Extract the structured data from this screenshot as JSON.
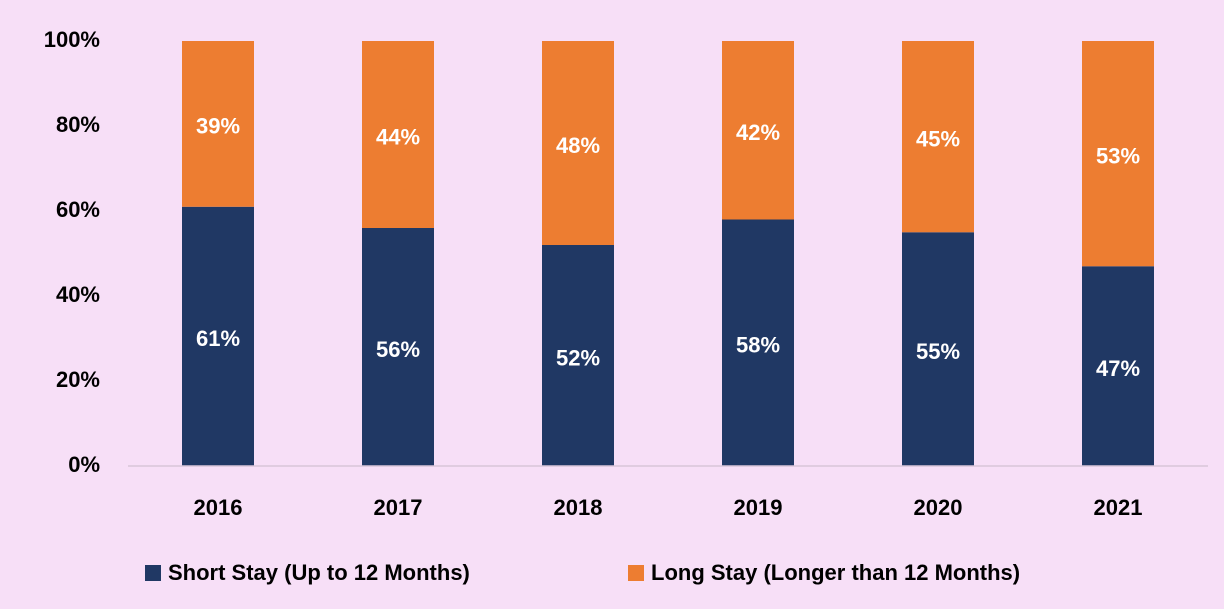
{
  "chart_data": {
    "type": "stacked_bar",
    "categories": [
      "2016",
      "2017",
      "2018",
      "2019",
      "2020",
      "2021"
    ],
    "series": [
      {
        "name": "Short Stay (Up to 12 Months)",
        "color": "#203864",
        "values": [
          61,
          56,
          52,
          58,
          55,
          47
        ],
        "value_labels": [
          "61%",
          "56%",
          "52%",
          "58%",
          "55%",
          "47%"
        ]
      },
      {
        "name": "Long Stay (Longer than 12 Months)",
        "color": "#ed7d31",
        "values": [
          39,
          44,
          48,
          42,
          45,
          53
        ],
        "value_labels": [
          "39%",
          "44%",
          "48%",
          "42%",
          "45%",
          "53%"
        ]
      }
    ],
    "ylim": [
      0,
      100
    ],
    "yticks": [
      {
        "value": 0,
        "label": "0%"
      },
      {
        "value": 20,
        "label": "20%"
      },
      {
        "value": 40,
        "label": "40%"
      },
      {
        "value": 60,
        "label": "60%"
      },
      {
        "value": 80,
        "label": "80%"
      },
      {
        "value": 100,
        "label": "100%"
      }
    ],
    "grid": false,
    "legend": "bottom"
  }
}
